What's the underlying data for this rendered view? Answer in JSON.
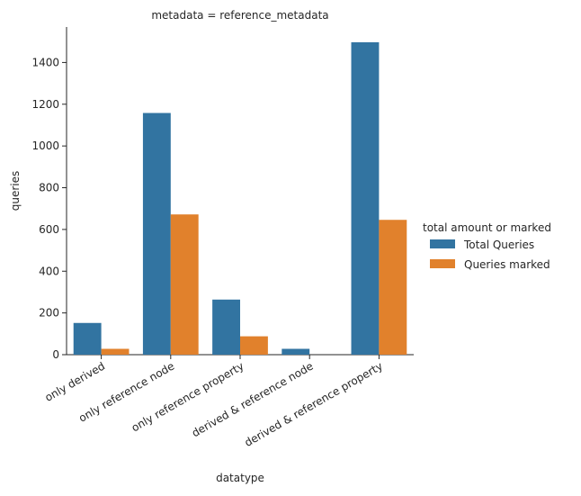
{
  "chart_data": {
    "type": "bar",
    "title": "metadata = reference_metadata",
    "xlabel": "datatype",
    "ylabel": "queries",
    "categories": [
      "only derived",
      "only reference node",
      "only reference property",
      "derived & reference node",
      "derived & reference property"
    ],
    "series": [
      {
        "name": "Total Queries",
        "color": "#3274a1",
        "values": [
          152,
          1158,
          264,
          28,
          1497
        ]
      },
      {
        "name": "Queries marked",
        "color": "#e1812c",
        "values": [
          28,
          672,
          88,
          0,
          646
        ]
      }
    ],
    "ylim": [
      0,
      1570
    ],
    "yticks": [
      0,
      200,
      400,
      600,
      800,
      1000,
      1200,
      1400
    ],
    "grid": false,
    "legend": {
      "title": "total amount or marked",
      "placement": "right"
    }
  }
}
